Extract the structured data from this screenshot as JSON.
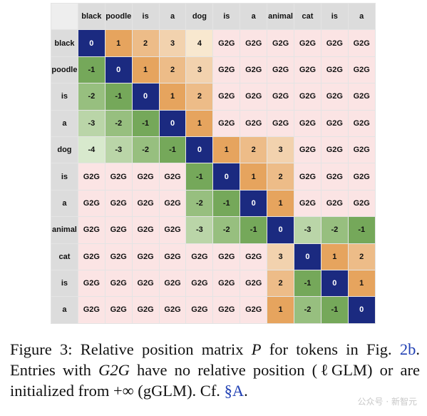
{
  "matrix": {
    "columns": [
      "black",
      "poodle",
      "is",
      "a",
      "dog",
      "is",
      "a",
      "animal",
      "cat",
      "is",
      "a"
    ],
    "rows": [
      "black",
      "poodle",
      "is",
      "a",
      "dog",
      "is",
      "a",
      "animal",
      "cat",
      "is",
      "a"
    ],
    "cells": [
      [
        "0",
        "1",
        "2",
        "3",
        "4",
        "G2G",
        "G2G",
        "G2G",
        "G2G",
        "G2G",
        "G2G"
      ],
      [
        "-1",
        "0",
        "1",
        "2",
        "3",
        "G2G",
        "G2G",
        "G2G",
        "G2G",
        "G2G",
        "G2G"
      ],
      [
        "-2",
        "-1",
        "0",
        "1",
        "2",
        "G2G",
        "G2G",
        "G2G",
        "G2G",
        "G2G",
        "G2G"
      ],
      [
        "-3",
        "-2",
        "-1",
        "0",
        "1",
        "G2G",
        "G2G",
        "G2G",
        "G2G",
        "G2G",
        "G2G"
      ],
      [
        "-4",
        "-3",
        "-2",
        "-1",
        "0",
        "1",
        "2",
        "3",
        "G2G",
        "G2G",
        "G2G"
      ],
      [
        "G2G",
        "G2G",
        "G2G",
        "G2G",
        "-1",
        "0",
        "1",
        "2",
        "G2G",
        "G2G",
        "G2G"
      ],
      [
        "G2G",
        "G2G",
        "G2G",
        "G2G",
        "-2",
        "-1",
        "0",
        "1",
        "G2G",
        "G2G",
        "G2G"
      ],
      [
        "G2G",
        "G2G",
        "G2G",
        "G2G",
        "-3",
        "-2",
        "-1",
        "0",
        "-3",
        "-2",
        "-1"
      ],
      [
        "G2G",
        "G2G",
        "G2G",
        "G2G",
        "G2G",
        "G2G",
        "G2G",
        "3",
        "0",
        "1",
        "2"
      ],
      [
        "G2G",
        "G2G",
        "G2G",
        "G2G",
        "G2G",
        "G2G",
        "G2G",
        "2",
        "-1",
        "0",
        "1"
      ],
      [
        "G2G",
        "G2G",
        "G2G",
        "G2G",
        "G2G",
        "G2G",
        "G2G",
        "1",
        "-2",
        "-1",
        "0"
      ]
    ],
    "colors": {
      "diagonal": "#1b2a80",
      "g2g": "#fbe4e4",
      "header": "#dcdcdc",
      "positive": [
        "#e6a45e",
        "#edbc88",
        "#f2d2ae",
        "#f8e8cf"
      ],
      "negative": [
        "#75a85a",
        "#97bf7f",
        "#bad5a8",
        "#d8e9cd"
      ]
    }
  },
  "caption": {
    "label": "Figure 3:",
    "text1": " Relative position matrix ",
    "symbol": "P",
    "text2": " for tokens in Fig. ",
    "fig_ref": "2b",
    "text3": ". Entries with ",
    "g2g": "G2G",
    "text4": " have no relative position (",
    "lglm": "ℓGLM",
    "text5": ") or are initialized from +∞ (",
    "gglm": "gGLM",
    "text6": "). Cf. ",
    "sec_ref": "§A",
    "text7": "."
  },
  "watermark": "公众号 · 新智元"
}
